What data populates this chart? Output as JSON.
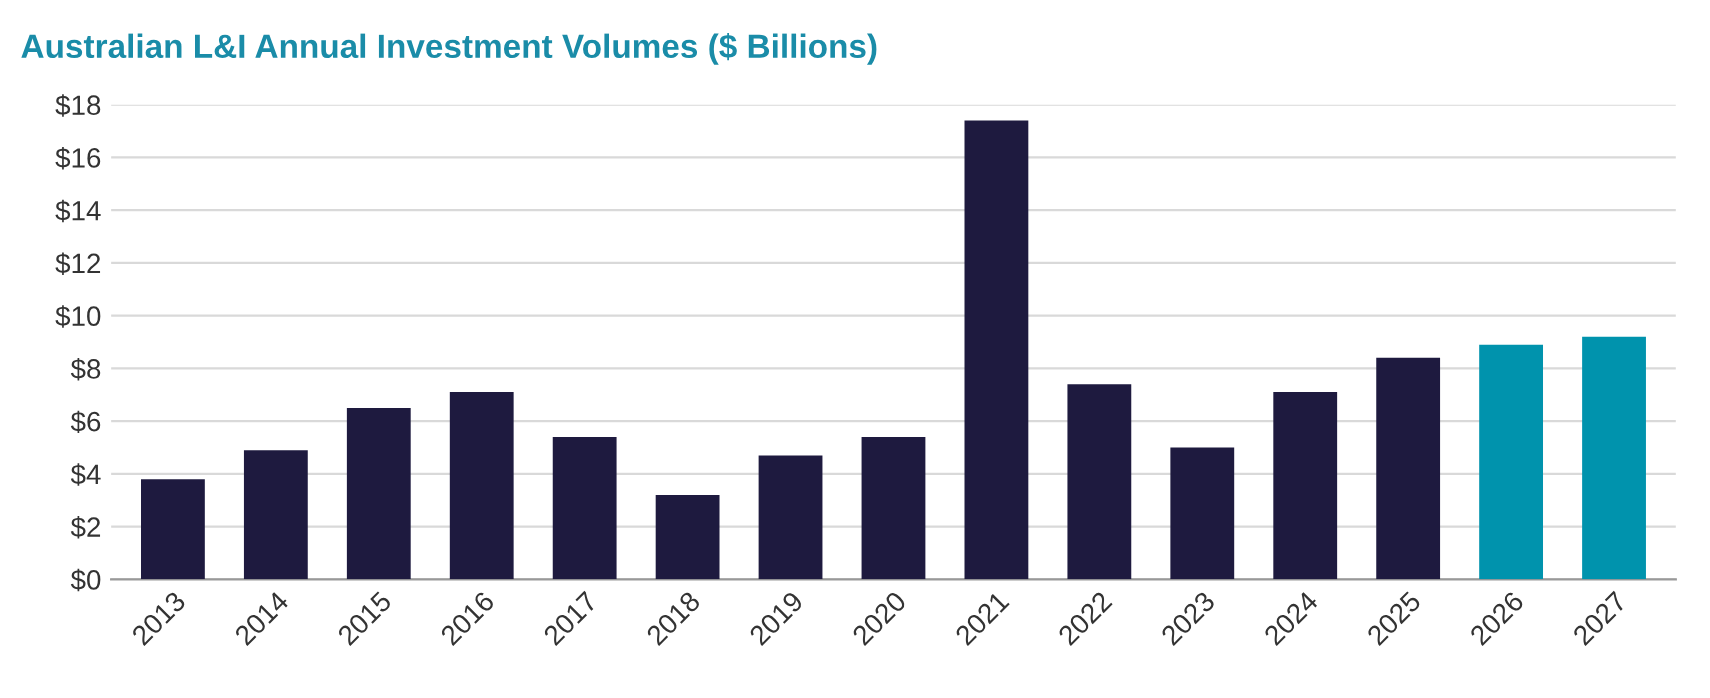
{
  "chart_data": {
    "type": "bar",
    "title": "Australian L&I Annual Investment Volumes ($ Billions)",
    "categories": [
      "2013",
      "2014",
      "2015",
      "2016",
      "2017",
      "2018",
      "2019",
      "2020",
      "2021",
      "2022",
      "2023",
      "2024",
      "2025",
      "2026",
      "2027"
    ],
    "values": [
      3.8,
      4.9,
      6.5,
      7.1,
      5.4,
      3.2,
      4.7,
      5.4,
      17.4,
      7.4,
      5.0,
      7.1,
      8.4,
      8.9,
      9.2
    ],
    "colors": [
      "#1e1a3f",
      "#1e1a3f",
      "#1e1a3f",
      "#1e1a3f",
      "#1e1a3f",
      "#1e1a3f",
      "#1e1a3f",
      "#1e1a3f",
      "#1e1a3f",
      "#1e1a3f",
      "#1e1a3f",
      "#1e1a3f",
      "#1e1a3f",
      "#0093ad",
      "#0093ad"
    ],
    "ylim": [
      0,
      18
    ],
    "yticks": [
      {
        "value": 0,
        "label": "$0"
      },
      {
        "value": 2,
        "label": "$2"
      },
      {
        "value": 4,
        "label": "$4"
      },
      {
        "value": 6,
        "label": "$6"
      },
      {
        "value": 8,
        "label": "$8"
      },
      {
        "value": 10,
        "label": "$10"
      },
      {
        "value": 12,
        "label": "$12"
      },
      {
        "value": 14,
        "label": "$14"
      },
      {
        "value": 16,
        "label": "$16"
      },
      {
        "value": 18,
        "label": "$18"
      }
    ],
    "grid": "y",
    "legend": false
  }
}
